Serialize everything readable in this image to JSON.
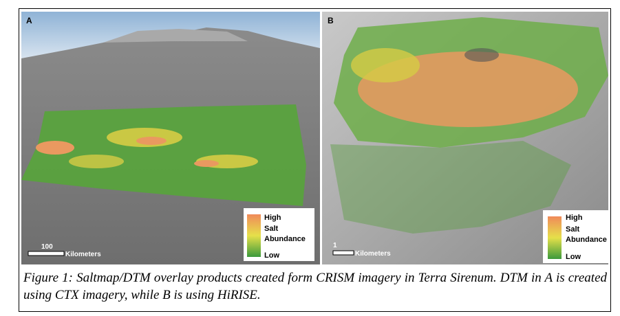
{
  "panels": [
    {
      "label": "A",
      "legend": {
        "high": "High",
        "title1": "Salt",
        "title2": "Abundance",
        "low": "Low"
      },
      "scale": {
        "value": "100",
        "unit": "Kilometers"
      }
    },
    {
      "label": "B",
      "legend": {
        "high": "High",
        "title1": "Salt",
        "title2": "Abundance",
        "low": "Low"
      },
      "scale": {
        "value": "1",
        "unit": "Kilometers"
      }
    }
  ],
  "caption": "Figure 1: Saltmap/DTM overlay products created form CRISM imagery in Terra Sirenum. DTM in A is created using CTX imagery, while B is using HiRISE."
}
